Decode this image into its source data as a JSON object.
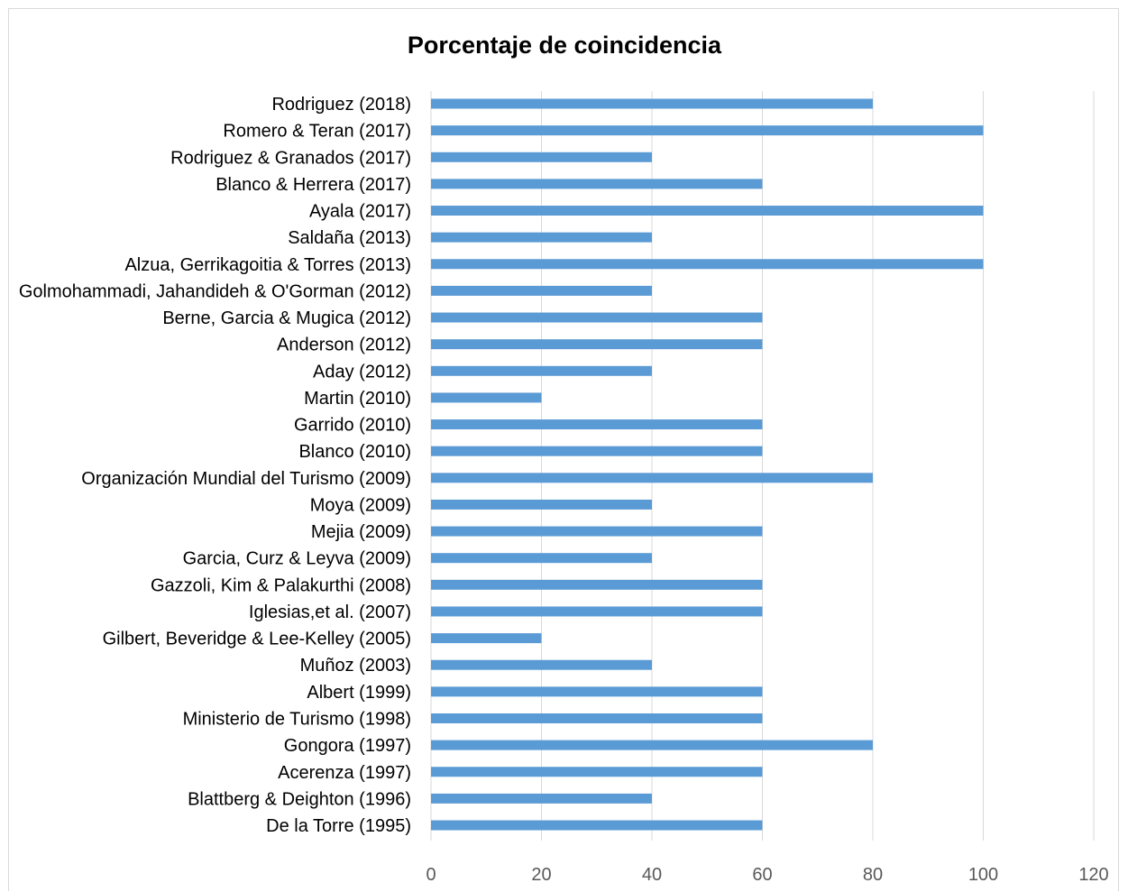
{
  "chart_data": {
    "type": "bar",
    "orientation": "horizontal",
    "title": "Porcentaje de coincidencia",
    "xlabel": "",
    "ylabel": "",
    "xlim": [
      0,
      120
    ],
    "ticks": [
      "0",
      "20",
      "40",
      "60",
      "80",
      "100",
      "120"
    ],
    "grid": true,
    "legend": "none",
    "bar_color": "#5b9bd5",
    "categories": [
      "Rodriguez (2018)",
      "Romero & Teran (2017)",
      "Rodriguez & Granados (2017)",
      "Blanco & Herrera (2017)",
      "Ayala (2017)",
      "Saldaña (2013)",
      "Alzua, Gerrikagoitia & Torres (2013)",
      "Golmohammadi, Jahandideh & O'Gorman (2012)",
      "Berne, Garcia & Mugica (2012)",
      "Anderson (2012)",
      "Aday (2012)",
      "Martin (2010)",
      "Garrido (2010)",
      "Blanco (2010)",
      "Organización Mundial del Turismo (2009)",
      "Moya (2009)",
      "Mejia (2009)",
      "Garcia, Curz & Leyva (2009)",
      "Gazzoli, Kim & Palakurthi (2008)",
      "Iglesias,et al. (2007)",
      "Gilbert, Beveridge & Lee-Kelley (2005)",
      "Muñoz (2003)",
      "Albert (1999)",
      "Ministerio de Turismo (1998)",
      "Gongora (1997)",
      "Acerenza (1997)",
      "Blattberg & Deighton (1996)",
      "De la Torre (1995)"
    ],
    "values": [
      80,
      100,
      40,
      60,
      100,
      40,
      100,
      40,
      60,
      60,
      40,
      20,
      60,
      60,
      80,
      40,
      60,
      40,
      60,
      60,
      20,
      40,
      60,
      60,
      80,
      60,
      40,
      60
    ]
  }
}
